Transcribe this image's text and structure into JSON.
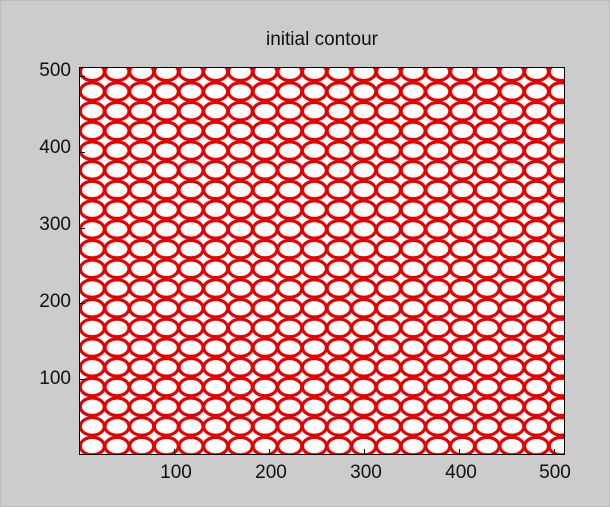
{
  "window": {
    "background": "#cccccc"
  },
  "chart_data": {
    "type": "contour",
    "title": "initial contour",
    "xlabel": "",
    "ylabel": "",
    "xlim": [
      0,
      512
    ],
    "ylim": [
      0,
      512
    ],
    "xticks": [
      100,
      200,
      300,
      400,
      500
    ],
    "yticks": [
      100,
      200,
      300,
      400,
      500
    ],
    "xtick_labels": [
      "100",
      "200",
      "300",
      "400",
      "500"
    ],
    "ytick_labels": [
      "100",
      "200",
      "300",
      "400",
      "500"
    ],
    "line_color": "#e60000",
    "pattern": "periodic grid of circular contours",
    "circle_spacing": 26,
    "circle_radius": 11,
    "grid": false
  }
}
